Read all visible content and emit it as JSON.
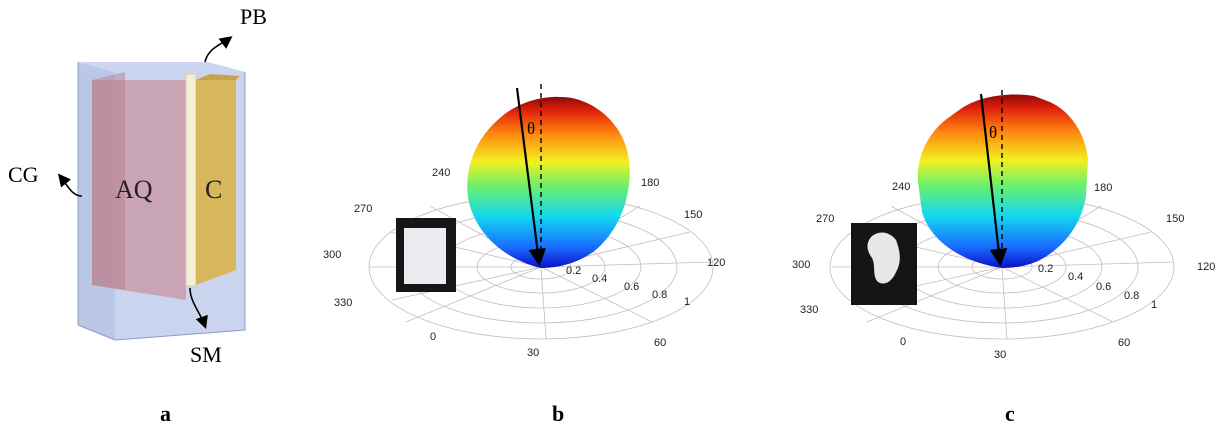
{
  "panel_a": {
    "labels": {
      "pb": "PB",
      "cg": "CG",
      "aq": "AQ",
      "c": "C",
      "sm": "SM"
    },
    "colors": {
      "glass": "#aebde3",
      "aq": "#c8909b",
      "c": "#d8b65c",
      "sm": "#f3efd6"
    }
  },
  "panel_b": {
    "angle_ticks": [
      "240",
      "270",
      "300",
      "330",
      "0",
      "30",
      "60",
      "120",
      "150",
      "180"
    ],
    "radial_ticks": [
      "0.2",
      "0.4",
      "0.6",
      "0.8",
      "1"
    ],
    "theta": "θ",
    "inset": "white-rectangle-sample"
  },
  "panel_c": {
    "angle_ticks": [
      "240",
      "270",
      "300",
      "330",
      "0",
      "30",
      "60",
      "120",
      "150",
      "180"
    ],
    "radial_ticks": [
      "0.2",
      "0.4",
      "0.6",
      "0.8",
      "1"
    ],
    "theta": "θ",
    "inset": "white-irregular-sample"
  },
  "captions": {
    "a": "a",
    "b": "b",
    "c": "c"
  }
}
